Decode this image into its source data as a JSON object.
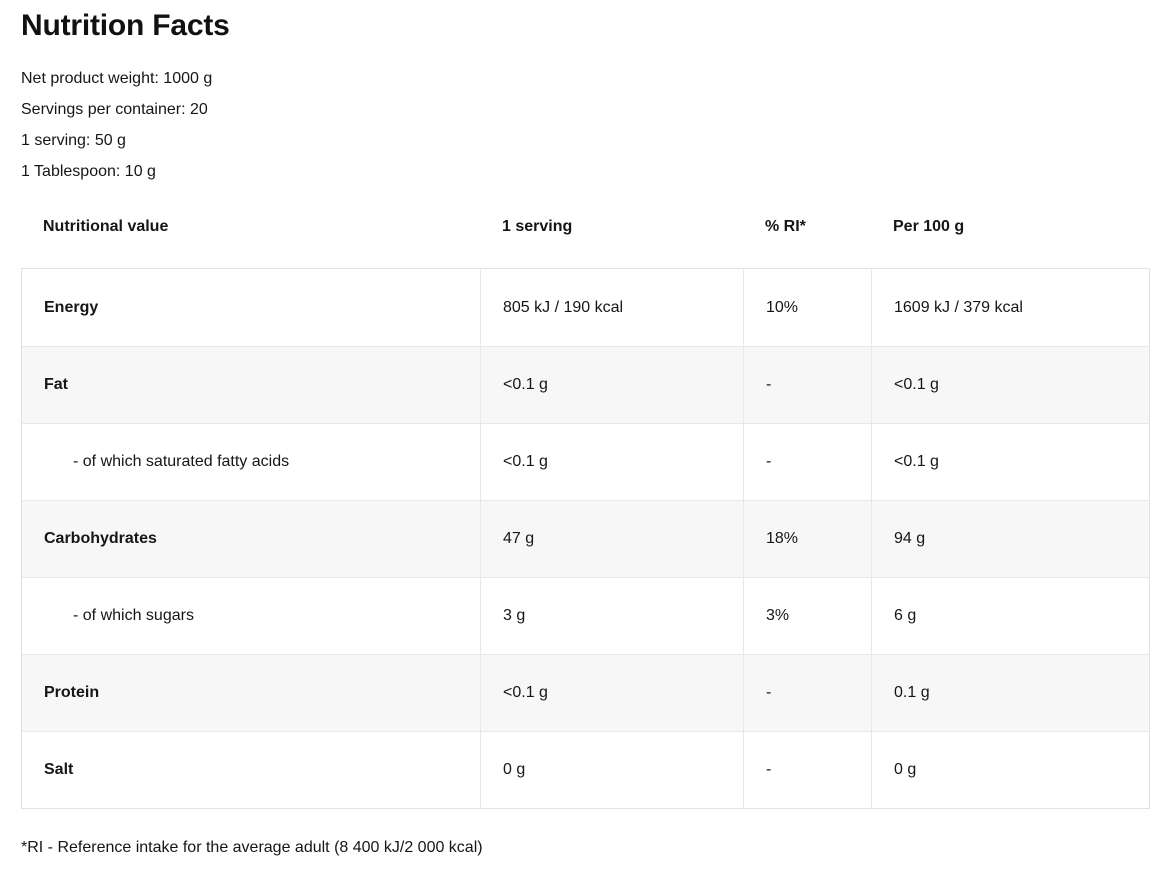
{
  "title": "Nutrition Facts",
  "meta": {
    "net_weight": "Net product weight: 1000 g",
    "servings_per_container": "Servings per container: 20",
    "serving_size": "1 serving: 50 g",
    "tablespoon": "1 Tablespoon: 10 g"
  },
  "table": {
    "headers": [
      "Nutritional value",
      "1 serving",
      "% RI*",
      "Per 100 g"
    ],
    "rows": [
      {
        "name": "Energy",
        "serving": "805 kJ / 190 kcal",
        "ri": "10%",
        "per100": "1609 kJ / 379 kcal",
        "emphasis": true,
        "indent": false,
        "shaded": false
      },
      {
        "name": "Fat",
        "serving": "<0.1 g",
        "ri": "-",
        "per100": "<0.1 g",
        "emphasis": true,
        "indent": false,
        "shaded": true
      },
      {
        "name": "- of which saturated fatty acids",
        "serving": "<0.1 g",
        "ri": "-",
        "per100": "<0.1 g",
        "emphasis": false,
        "indent": true,
        "shaded": false
      },
      {
        "name": "Carbohydrates",
        "serving": "47 g",
        "ri": "18%",
        "per100": "94 g",
        "emphasis": true,
        "indent": false,
        "shaded": true
      },
      {
        "name": "- of which sugars",
        "serving": "3 g",
        "ri": "3%",
        "per100": "6 g",
        "emphasis": false,
        "indent": true,
        "shaded": false
      },
      {
        "name": "Protein",
        "serving": "<0.1 g",
        "ri": "-",
        "per100": "0.1 g",
        "emphasis": true,
        "indent": false,
        "shaded": true
      },
      {
        "name": "Salt",
        "serving": "0 g",
        "ri": "-",
        "per100": "0 g",
        "emphasis": true,
        "indent": false,
        "shaded": false
      }
    ]
  },
  "footnote": "*RI - Reference intake for the average adult (8 400 kJ/2 000 kcal)",
  "colors": {
    "text": "#161616",
    "row_shade": "#f7f7f7",
    "border": "#e2e2e2",
    "background": "#ffffff"
  }
}
